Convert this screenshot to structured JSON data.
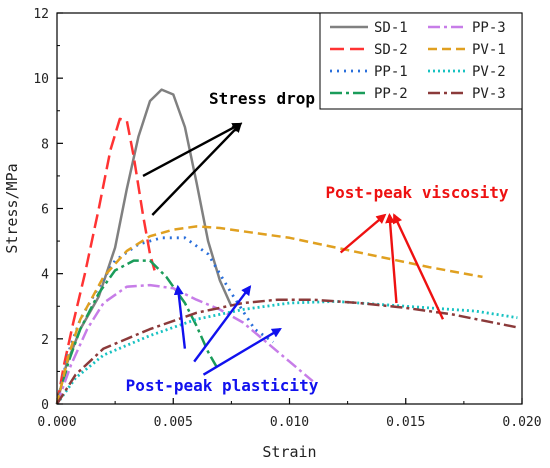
{
  "chart_data": {
    "type": "line",
    "xlabel": "Strain",
    "ylabel": "Stress/MPa",
    "xlim": [
      0,
      0.02
    ],
    "ylim": [
      0,
      12
    ],
    "x_ticks": [
      "0.000",
      "0.005",
      "0.010",
      "0.015",
      "0.020"
    ],
    "y_ticks": [
      "0",
      "2",
      "4",
      "6",
      "8",
      "10",
      "12"
    ],
    "legend_position": "top-right",
    "series": [
      {
        "name": "SD-1",
        "color": "#808080",
        "dash": "",
        "width": 2.5,
        "points": [
          [
            0,
            0
          ],
          [
            0.0004,
            1.2
          ],
          [
            0.001,
            2.3
          ],
          [
            0.0018,
            3.3
          ],
          [
            0.0025,
            4.8
          ],
          [
            0.003,
            6.6
          ],
          [
            0.0035,
            8.2
          ],
          [
            0.004,
            9.3
          ],
          [
            0.0045,
            9.65
          ],
          [
            0.005,
            9.5
          ],
          [
            0.0055,
            8.5
          ],
          [
            0.006,
            6.8
          ],
          [
            0.0065,
            5.0
          ],
          [
            0.007,
            3.8
          ],
          [
            0.0075,
            3.0
          ]
        ]
      },
      {
        "name": "SD-2",
        "color": "#ff3333",
        "dash": "14,6",
        "width": 2.5,
        "points": [
          [
            0,
            0
          ],
          [
            0.0003,
            1.2
          ],
          [
            0.0007,
            2.5
          ],
          [
            0.0012,
            4.0
          ],
          [
            0.0018,
            6.0
          ],
          [
            0.0023,
            7.8
          ],
          [
            0.0027,
            8.75
          ],
          [
            0.003,
            8.7
          ],
          [
            0.0033,
            7.6
          ],
          [
            0.0037,
            5.8
          ],
          [
            0.004,
            4.6
          ],
          [
            0.0042,
            4.1
          ]
        ]
      },
      {
        "name": "PP-1",
        "color": "#2a6fdb",
        "dash": "2,5",
        "width": 2.8,
        "points": [
          [
            0,
            0
          ],
          [
            0.0005,
            1.6
          ],
          [
            0.001,
            2.6
          ],
          [
            0.0018,
            3.6
          ],
          [
            0.0025,
            4.4
          ],
          [
            0.0035,
            4.9
          ],
          [
            0.0045,
            5.1
          ],
          [
            0.0055,
            5.1
          ],
          [
            0.0065,
            4.6
          ],
          [
            0.0075,
            3.4
          ],
          [
            0.0085,
            2.3
          ],
          [
            0.0093,
            1.9
          ]
        ]
      },
      {
        "name": "PP-2",
        "color": "#1a9c5a",
        "dash": "12,4,3,4",
        "width": 2.5,
        "points": [
          [
            0,
            0
          ],
          [
            0.0005,
            1.3
          ],
          [
            0.001,
            2.3
          ],
          [
            0.0018,
            3.4
          ],
          [
            0.0025,
            4.1
          ],
          [
            0.0033,
            4.4
          ],
          [
            0.004,
            4.4
          ],
          [
            0.0047,
            3.9
          ],
          [
            0.0055,
            3.1
          ],
          [
            0.006,
            2.4
          ],
          [
            0.0065,
            1.6
          ],
          [
            0.0069,
            1.1
          ]
        ]
      },
      {
        "name": "PP-3",
        "color": "#c77de8",
        "dash": "12,4,3,4",
        "width": 2.5,
        "points": [
          [
            0,
            0
          ],
          [
            0.0006,
            1.2
          ],
          [
            0.0013,
            2.3
          ],
          [
            0.002,
            3.1
          ],
          [
            0.003,
            3.6
          ],
          [
            0.004,
            3.65
          ],
          [
            0.005,
            3.55
          ],
          [
            0.006,
            3.2
          ],
          [
            0.007,
            2.9
          ],
          [
            0.008,
            2.5
          ],
          [
            0.009,
            1.9
          ],
          [
            0.01,
            1.3
          ],
          [
            0.011,
            0.7
          ]
        ]
      },
      {
        "name": "PV-1",
        "color": "#e0a020",
        "dash": "9,5",
        "width": 2.5,
        "points": [
          [
            0,
            0
          ],
          [
            0.0005,
            1.5
          ],
          [
            0.001,
            2.6
          ],
          [
            0.002,
            3.9
          ],
          [
            0.003,
            4.7
          ],
          [
            0.004,
            5.15
          ],
          [
            0.005,
            5.35
          ],
          [
            0.006,
            5.45
          ],
          [
            0.007,
            5.4
          ],
          [
            0.008,
            5.3
          ],
          [
            0.01,
            5.1
          ],
          [
            0.012,
            4.8
          ],
          [
            0.014,
            4.5
          ],
          [
            0.016,
            4.2
          ],
          [
            0.0183,
            3.9
          ]
        ]
      },
      {
        "name": "PV-2",
        "color": "#17c2c2",
        "dash": "2,3",
        "width": 2.8,
        "points": [
          [
            0,
            0
          ],
          [
            0.0008,
            0.8
          ],
          [
            0.002,
            1.5
          ],
          [
            0.004,
            2.1
          ],
          [
            0.006,
            2.6
          ],
          [
            0.008,
            2.9
          ],
          [
            0.01,
            3.1
          ],
          [
            0.012,
            3.15
          ],
          [
            0.014,
            3.05
          ],
          [
            0.016,
            2.95
          ],
          [
            0.018,
            2.85
          ],
          [
            0.0198,
            2.65
          ]
        ]
      },
      {
        "name": "PV-3",
        "color": "#8b3a3a",
        "dash": "12,4,3,4",
        "width": 2.5,
        "points": [
          [
            0,
            0
          ],
          [
            0.0008,
            0.9
          ],
          [
            0.002,
            1.7
          ],
          [
            0.004,
            2.3
          ],
          [
            0.006,
            2.8
          ],
          [
            0.008,
            3.1
          ],
          [
            0.0095,
            3.2
          ],
          [
            0.011,
            3.2
          ],
          [
            0.013,
            3.1
          ],
          [
            0.015,
            2.95
          ],
          [
            0.017,
            2.75
          ],
          [
            0.0198,
            2.35
          ]
        ]
      }
    ],
    "annotations": [
      {
        "text": "Stress drop",
        "color": "#000000",
        "arrows": [
          [
            [
              0.0037,
              7.0
            ],
            [
              0.0079,
              8.6
            ]
          ],
          [
            [
              0.0041,
              5.8
            ],
            [
              0.0079,
              8.6
            ]
          ]
        ]
      },
      {
        "text": "Post-peak viscosity",
        "color": "#ee1111",
        "arrows": [
          [
            [
              0.0122,
              4.65
            ],
            [
              0.0141,
              5.8
            ]
          ],
          [
            [
              0.0146,
              3.1
            ],
            [
              0.0143,
              5.8
            ]
          ],
          [
            [
              0.0166,
              2.6
            ],
            [
              0.0145,
              5.8
            ]
          ]
        ]
      },
      {
        "text": "Post-peak plasticity",
        "color": "#1111ee",
        "arrows": [
          [
            [
              0.0055,
              1.7
            ],
            [
              0.0052,
              3.6
            ]
          ],
          [
            [
              0.0059,
              1.3
            ],
            [
              0.0083,
              3.6
            ]
          ],
          [
            [
              0.0063,
              0.9
            ],
            [
              0.0096,
              2.3
            ]
          ]
        ]
      }
    ]
  }
}
